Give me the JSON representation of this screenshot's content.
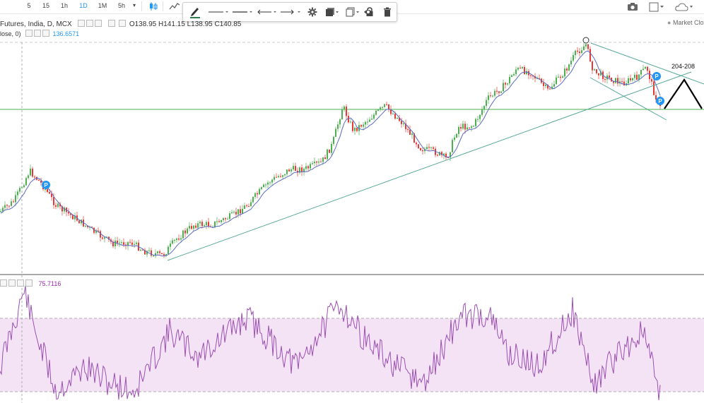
{
  "toolbar": {
    "timeframes": [
      "5",
      "15",
      "1h",
      "1D",
      "1M",
      "5h"
    ],
    "active_timeframe": "1D"
  },
  "drawing_toolbar": {
    "tools": [
      "pencil-icon",
      "line-style-icon",
      "line-width-icon",
      "line-end-icon",
      "arrow-end-icon",
      "settings-icon",
      "layers-icon",
      "clone-icon",
      "lock-icon",
      "eye-icon",
      "trash-icon"
    ],
    "accent_color": "#2f7d4f"
  },
  "legend": {
    "symbol": "Futures, India, D, MCX",
    "open": "O138.95",
    "high": "H141.15",
    "low": "L138.95",
    "close": "C140.85",
    "ma_label": "lose, 0)",
    "ma_value": "136.6571",
    "ma_value_color": "#2196f3"
  },
  "market_status": "Market Clos",
  "annotation": "204-208",
  "rsi": {
    "value": "75.7116",
    "value_color": "#9c27b0",
    "band_color": "#f3e3f5",
    "line_color": "#9c4fb5"
  },
  "colors": {
    "up": "#4caf50",
    "down": "#e53935",
    "ma": "#5c6bc0",
    "trendline": "#5aa99a",
    "horizontal": "#4caf50"
  },
  "markers": [
    "P",
    "P",
    "P"
  ]
}
